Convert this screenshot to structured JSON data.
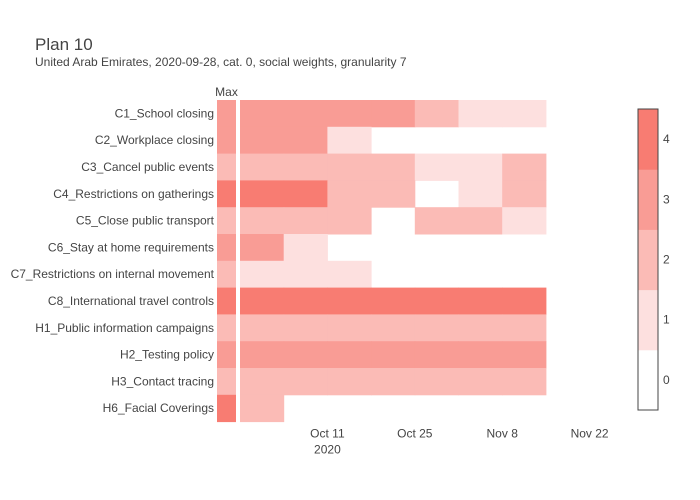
{
  "chart_data": {
    "type": "heatmap",
    "title": "Plan 10",
    "subtitle": "United Arab Emirates, 2020-09-28, cat. 0, social weights, granularity 7",
    "max_label": "Max",
    "rows": [
      {
        "name": "C1_School closing",
        "max": 3,
        "values": [
          3,
          3,
          3,
          3,
          2,
          1,
          1
        ]
      },
      {
        "name": "C2_Workplace closing",
        "max": 3,
        "values": [
          3,
          3,
          1,
          null,
          null,
          null,
          null
        ]
      },
      {
        "name": "C3_Cancel public events",
        "max": 2,
        "values": [
          2,
          2,
          2,
          2,
          1,
          1,
          2
        ]
      },
      {
        "name": "C4_Restrictions on gatherings",
        "max": 4,
        "values": [
          4,
          4,
          2,
          2,
          null,
          1,
          2
        ]
      },
      {
        "name": "C5_Close public transport",
        "max": 2,
        "values": [
          2,
          2,
          2,
          null,
          2,
          2,
          1
        ]
      },
      {
        "name": "C6_Stay at home requirements",
        "max": 3,
        "values": [
          3,
          1,
          null,
          null,
          null,
          null,
          null
        ]
      },
      {
        "name": "C7_Restrictions on internal movement",
        "max": 2,
        "values": [
          1,
          1,
          1,
          null,
          null,
          null,
          null
        ]
      },
      {
        "name": "C8_International travel controls",
        "max": 4,
        "values": [
          4,
          4,
          4,
          4,
          4,
          4,
          4
        ]
      },
      {
        "name": "H1_Public information campaigns",
        "max": 2,
        "values": [
          2,
          2,
          2,
          2,
          2,
          2,
          2
        ]
      },
      {
        "name": "H2_Testing policy",
        "max": 3,
        "values": [
          3,
          3,
          3,
          3,
          3,
          3,
          3
        ]
      },
      {
        "name": "H3_Contact tracing",
        "max": 2,
        "values": [
          2,
          2,
          2,
          2,
          2,
          2,
          2
        ]
      },
      {
        "name": "H6_Facial Coverings",
        "max": 4,
        "values": [
          2,
          null,
          null,
          null,
          null,
          null,
          null
        ]
      }
    ],
    "x_ticks": [
      {
        "label": "Oct 11",
        "sublabel": "2020"
      },
      {
        "label": "Oct 25",
        "sublabel": ""
      },
      {
        "label": "Nov 8",
        "sublabel": ""
      },
      {
        "label": "Nov 22",
        "sublabel": ""
      }
    ],
    "colorbar": {
      "min": 0,
      "max": 4,
      "ticks": [
        "0",
        "1",
        "2",
        "3",
        "4"
      ]
    },
    "colors": [
      "#ffffff",
      "#fde0df",
      "#fbbbb6",
      "#f99c95",
      "#f87c72"
    ]
  }
}
